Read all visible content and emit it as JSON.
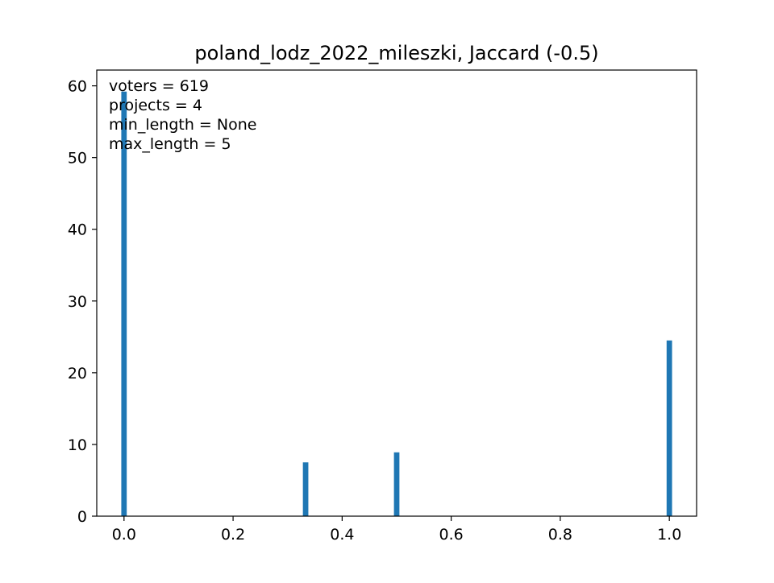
{
  "chart_data": {
    "type": "bar",
    "title": "poland_lodz_2022_mileszki, Jaccard (-0.5)",
    "xlabel": "",
    "ylabel": "",
    "xlim": [
      -0.05,
      1.05
    ],
    "ylim": [
      0,
      62.2
    ],
    "x_ticks": [
      "0.0",
      "0.2",
      "0.4",
      "0.6",
      "0.8",
      "1.0"
    ],
    "y_ticks": [
      "0",
      "10",
      "20",
      "30",
      "40",
      "50",
      "60"
    ],
    "bar_color": "#1f77b4",
    "bar_width": 0.01,
    "x": [
      0.0,
      0.333,
      0.5,
      1.0
    ],
    "values": [
      59.2,
      7.5,
      8.9,
      24.5
    ],
    "grid": false,
    "annotations": [
      "voters = 619",
      "projects = 4",
      "min_length = None",
      "max_length = 5"
    ]
  }
}
